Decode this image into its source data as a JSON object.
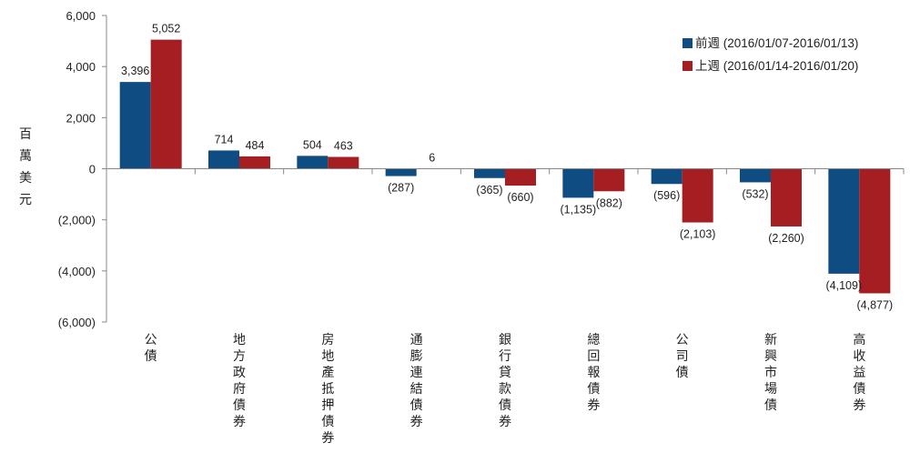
{
  "chart_data": {
    "type": "bar",
    "ylabel": "百萬美元",
    "ylim": [
      -6000,
      6000
    ],
    "yticks": [
      6000,
      4000,
      2000,
      0,
      -2000,
      -4000,
      -6000
    ],
    "ytick_labels": [
      "6,000",
      "4,000",
      "2,000",
      "0",
      "(2,000)",
      "(4,000)",
      "(6,000)"
    ],
    "categories": [
      "公債",
      "地方政府債券",
      "房地產抵押債券",
      "通膨連結債券",
      "銀行貸款債券",
      "總回報債券",
      "公司債",
      "新興市場債",
      "高收益債券"
    ],
    "series": [
      {
        "name": "前週 (2016/01/07-2016/01/13)",
        "color": "#0f4c81",
        "values": [
          3396,
          714,
          504,
          -287,
          -365,
          -1135,
          -596,
          -532,
          -4109
        ],
        "labels": [
          "3,396",
          "714",
          "504",
          "(287)",
          "(365)",
          "(1,135)",
          "(596)",
          "(532)",
          "(4,109)"
        ]
      },
      {
        "name": "上週 (2016/01/14-2016/01/20)",
        "color": "#a51e22",
        "values": [
          5052,
          484,
          463,
          6,
          -660,
          -882,
          -2103,
          -2260,
          -4877
        ],
        "labels": [
          "5,052",
          "484",
          "463",
          "6",
          "(660)",
          "(882)",
          "(2,103)",
          "(2,260)",
          "(4,877)"
        ]
      }
    ],
    "legend_position": "top-right",
    "grid": false
  }
}
